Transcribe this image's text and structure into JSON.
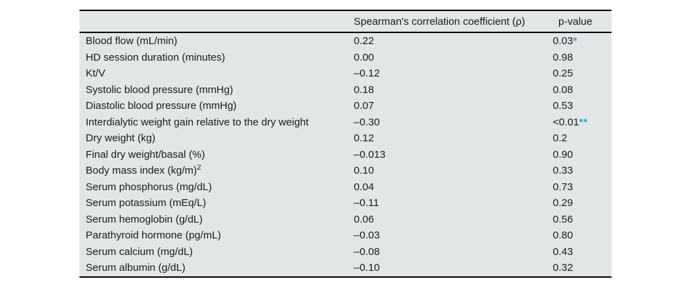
{
  "colors": {
    "table_background": "#e2e6e7",
    "text": "#1a1a1a",
    "rule": "#000000",
    "significance_marker": "#3aa1d8"
  },
  "table": {
    "columns": {
      "variable": "",
      "rho": "Spearman's correlation coefficient (ρ)",
      "p": "p-value"
    },
    "rows": [
      {
        "label": "Blood flow (mL/min)",
        "rho": "0.22",
        "p": "0.03",
        "marker": "*"
      },
      {
        "label": "HD session duration (minutes)",
        "rho": "0.00",
        "p": "0.98",
        "marker": ""
      },
      {
        "label": "Kt/V",
        "rho": "–0.12",
        "p": "0.25",
        "marker": ""
      },
      {
        "label": "Systolic blood pressure (mmHg)",
        "rho": "0.18",
        "p": "0.08",
        "marker": ""
      },
      {
        "label": "Diastolic blood pressure (mmHg)",
        "rho": "0.07",
        "p": "0.53",
        "marker": ""
      },
      {
        "label": "Interdialytic weight gain relative to the dry weight",
        "rho": "–0.30",
        "p": "<0.01",
        "marker": "**"
      },
      {
        "label": "Dry weight (kg)",
        "rho": "0.12",
        "p": "0.2",
        "marker": ""
      },
      {
        "label": "Final dry weight/basal (%)",
        "rho": "–0.013",
        "p": "0.90",
        "marker": ""
      },
      {
        "label": "Body mass index (kg/m)",
        "sup": "2",
        "rho": "0.10",
        "p": "0.33",
        "marker": ""
      },
      {
        "label": "Serum phosphorus (mg/dL)",
        "rho": "0.04",
        "p": "0.73",
        "marker": ""
      },
      {
        "label": "Serum potassium (mEq/L)",
        "rho": "–0.11",
        "p": "0.29",
        "marker": ""
      },
      {
        "label": "Serum hemoglobin (g/dL)",
        "rho": "0.06",
        "p": "0.56",
        "marker": ""
      },
      {
        "label": "Parathyroid hormone (pg/mL)",
        "rho": "–0.03",
        "p": "0.80",
        "marker": ""
      },
      {
        "label": "Serum calcium (mg/dL)",
        "rho": "–0.08",
        "p": "0.43",
        "marker": ""
      },
      {
        "label": "Serum albumin (g/dL)",
        "rho": "–0.10",
        "p": "0.32",
        "marker": ""
      }
    ]
  }
}
